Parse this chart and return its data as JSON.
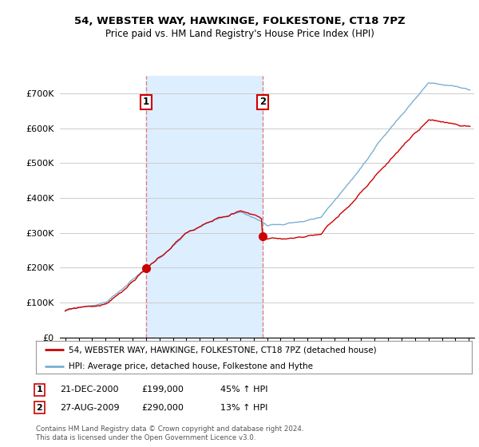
{
  "title": "54, WEBSTER WAY, HAWKINGE, FOLKESTONE, CT18 7PZ",
  "subtitle": "Price paid vs. HM Land Registry's House Price Index (HPI)",
  "legend_line1": "54, WEBSTER WAY, HAWKINGE, FOLKESTONE, CT18 7PZ (detached house)",
  "legend_line2": "HPI: Average price, detached house, Folkestone and Hythe",
  "transaction1_date": "21-DEC-2000",
  "transaction1_price": "£199,000",
  "transaction1_hpi": "45% ↑ HPI",
  "transaction1_year": 2001.0,
  "transaction1_value": 199000,
  "transaction2_date": "27-AUG-2009",
  "transaction2_price": "£290,000",
  "transaction2_hpi": "13% ↑ HPI",
  "transaction2_year": 2009.67,
  "transaction2_value": 290000,
  "footer": "Contains HM Land Registry data © Crown copyright and database right 2024.\nThis data is licensed under the Open Government Licence v3.0.",
  "hpi_color": "#7bafd4",
  "price_color": "#cc0000",
  "vline_color": "#e08080",
  "shade_color": "#ddeeff",
  "background_color": "#ffffff",
  "grid_color": "#cccccc",
  "ylim": [
    0,
    750000
  ],
  "yticks": [
    0,
    100000,
    200000,
    300000,
    400000,
    500000,
    600000,
    700000
  ],
  "ytick_labels": [
    "£0",
    "£100K",
    "£200K",
    "£300K",
    "£400K",
    "£500K",
    "£600K",
    "£700K"
  ],
  "xlim_start": 1994.6,
  "xlim_end": 2025.4
}
